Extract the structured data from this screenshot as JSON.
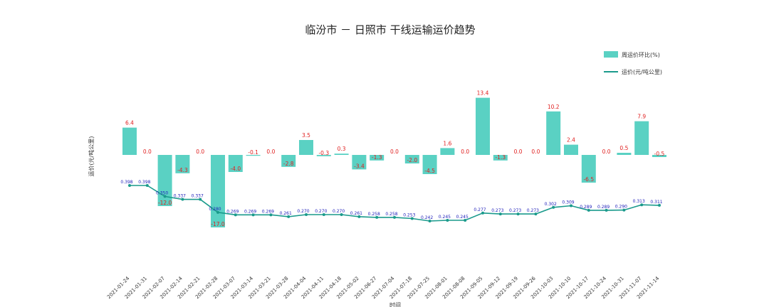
{
  "chart_data": {
    "type": "bar+line",
    "title": "临汾市 － 日照市 干线运输运价趋势",
    "ylabel": "运价(元/吨公里)",
    "xlabel": "时间",
    "legend": {
      "placement": "top-right"
    },
    "categories": [
      "2021-01-24",
      "2021-01-31",
      "2021-02-07",
      "2021-02-14",
      "2021-02-21",
      "2021-02-28",
      "2021-03-07",
      "2021-03-14",
      "2021-03-21",
      "2021-03-28",
      "2021-04-04",
      "2021-04-11",
      "2021-04-18",
      "2021-05-02",
      "2021-06-27",
      "2021-07-04",
      "2021-07-18",
      "2021-07-25",
      "2021-08-01",
      "2021-08-08",
      "2021-09-05",
      "2021-09-12",
      "2021-09-19",
      "2021-09-26",
      "2021-10-03",
      "2021-10-10",
      "2021-10-17",
      "2021-10-24",
      "2021-10-31",
      "2021-11-07",
      "2021-11-14"
    ],
    "series": [
      {
        "name": "周运价环比(%)",
        "kind": "bar",
        "color": "#5ad1c3",
        "label_color": "#e02020",
        "values": [
          6.4,
          0.0,
          -12.0,
          -4.3,
          0.0,
          -17.0,
          -4.0,
          -0.1,
          0.0,
          -2.8,
          3.5,
          -0.3,
          0.3,
          -3.4,
          -1.3,
          0.0,
          -2.0,
          -4.5,
          1.6,
          0.0,
          13.4,
          -1.3,
          0.0,
          0.0,
          10.2,
          2.4,
          -6.5,
          0.0,
          0.5,
          7.9,
          -0.5
        ]
      },
      {
        "name": "运价(元/吨公里)",
        "kind": "line",
        "color": "#1a9a8c",
        "label_color": "#2222bb",
        "labels": [
          "0.398",
          "0.398",
          "0.350",
          "0.337",
          "0.337",
          "0.280",
          "0.269",
          "0.269",
          "0.269",
          "0.261",
          "0.270",
          "0.270",
          "0.270",
          "0.261",
          "0.258",
          "0.258",
          "0.253",
          "0.242",
          "0.245",
          "0.245",
          "0.277",
          "0.273",
          "0.273",
          "0.273",
          "0.302",
          "0.309",
          "0.289",
          "0.289",
          "0.290",
          "0.313",
          "0.311"
        ],
        "values": [
          0.398,
          0.398,
          0.35,
          0.337,
          0.337,
          0.28,
          0.269,
          0.269,
          0.269,
          0.261,
          0.27,
          0.27,
          0.27,
          0.261,
          0.258,
          0.258,
          0.253,
          0.242,
          0.245,
          0.245,
          0.277,
          0.273,
          0.273,
          0.273,
          0.302,
          0.309,
          0.289,
          0.289,
          0.29,
          0.313,
          0.311
        ]
      }
    ]
  }
}
